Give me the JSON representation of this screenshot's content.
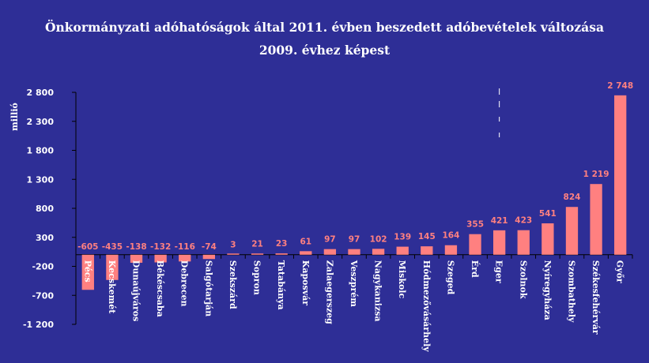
{
  "title_line1": "Önkormányzati adóhatóságok által 2011. évben beszedett adóbevételek változása",
  "title_line2": "2009. évhez képest",
  "colors": {
    "background": "#2e2e96",
    "bar": "#ff8080",
    "label": "#ff8080",
    "axis": "#000000",
    "text": "#ffffff"
  },
  "chart_data": {
    "type": "bar",
    "title": "Önkormányzati adóhatóságok által 2011. évben beszedett adóbevételek változása 2009. évhez képest",
    "ylabel": "millió",
    "xlabel": "",
    "ylim": [
      -1200,
      2800
    ],
    "yticks": [
      2800,
      2300,
      1800,
      1300,
      800,
      300,
      -200,
      -700,
      -1200
    ],
    "ytick_labels": [
      "2 800",
      "2 300",
      "1 800",
      "1 300",
      "800",
      "300",
      "-200",
      "-700",
      "-1 200"
    ],
    "grid": false,
    "broken_axis_on": "Győr",
    "categories": [
      "Pécs",
      "Kecskemét",
      "Dunaújváros",
      "Békéscsaba",
      "Debrecen",
      "Salgótarján",
      "Szekszárd",
      "Sopron",
      "Tatabánya",
      "Kaposvár",
      "Zalaegerszeg",
      "Veszprém",
      "Nagykanizsa",
      "Miskolc",
      "Hódmezővásárhely",
      "Szeged",
      "Érd",
      "Eger",
      "Szolnok",
      "Nyíregyháza",
      "Szombathely",
      "Székesfehérvár",
      "Győr"
    ],
    "values": [
      -605,
      -435,
      -138,
      -132,
      -116,
      -74,
      3,
      21,
      23,
      61,
      97,
      97,
      102,
      139,
      145,
      164,
      355,
      421,
      423,
      541,
      824,
      1219,
      2748
    ],
    "value_labels": [
      "-605",
      "-435",
      "-138",
      "-132",
      "-116",
      "-74",
      "3",
      "21",
      "23",
      "61",
      "97",
      "97",
      "102",
      "139",
      "145",
      "164",
      "355",
      "421",
      "423",
      "541",
      "824",
      "1 219",
      "2 748"
    ]
  }
}
